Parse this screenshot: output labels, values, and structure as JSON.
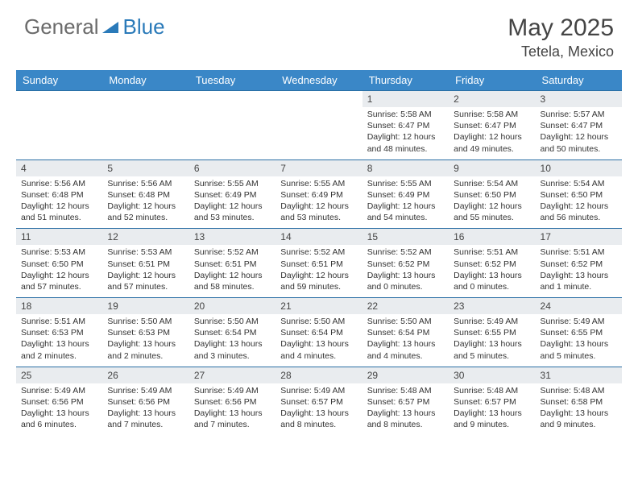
{
  "logo": {
    "text_a": "General",
    "text_b": "Blue"
  },
  "header": {
    "month": "May 2025",
    "location": "Tetela, Mexico"
  },
  "colors": {
    "header_bg": "#3a87c7",
    "daynum_bg": "#e9ecef",
    "border": "#2a6fa5",
    "logo_gray": "#6b6b6b",
    "logo_blue": "#2a7ab9"
  },
  "days_of_week": [
    "Sunday",
    "Monday",
    "Tuesday",
    "Wednesday",
    "Thursday",
    "Friday",
    "Saturday"
  ],
  "weeks": [
    {
      "nums": [
        "",
        "",
        "",
        "",
        "1",
        "2",
        "3"
      ],
      "cells": [
        null,
        null,
        null,
        null,
        {
          "l1": "Sunrise: 5:58 AM",
          "l2": "Sunset: 6:47 PM",
          "l3": "Daylight: 12 hours",
          "l4": "and 48 minutes."
        },
        {
          "l1": "Sunrise: 5:58 AM",
          "l2": "Sunset: 6:47 PM",
          "l3": "Daylight: 12 hours",
          "l4": "and 49 minutes."
        },
        {
          "l1": "Sunrise: 5:57 AM",
          "l2": "Sunset: 6:47 PM",
          "l3": "Daylight: 12 hours",
          "l4": "and 50 minutes."
        }
      ]
    },
    {
      "nums": [
        "4",
        "5",
        "6",
        "7",
        "8",
        "9",
        "10"
      ],
      "cells": [
        {
          "l1": "Sunrise: 5:56 AM",
          "l2": "Sunset: 6:48 PM",
          "l3": "Daylight: 12 hours",
          "l4": "and 51 minutes."
        },
        {
          "l1": "Sunrise: 5:56 AM",
          "l2": "Sunset: 6:48 PM",
          "l3": "Daylight: 12 hours",
          "l4": "and 52 minutes."
        },
        {
          "l1": "Sunrise: 5:55 AM",
          "l2": "Sunset: 6:49 PM",
          "l3": "Daylight: 12 hours",
          "l4": "and 53 minutes."
        },
        {
          "l1": "Sunrise: 5:55 AM",
          "l2": "Sunset: 6:49 PM",
          "l3": "Daylight: 12 hours",
          "l4": "and 53 minutes."
        },
        {
          "l1": "Sunrise: 5:55 AM",
          "l2": "Sunset: 6:49 PM",
          "l3": "Daylight: 12 hours",
          "l4": "and 54 minutes."
        },
        {
          "l1": "Sunrise: 5:54 AM",
          "l2": "Sunset: 6:50 PM",
          "l3": "Daylight: 12 hours",
          "l4": "and 55 minutes."
        },
        {
          "l1": "Sunrise: 5:54 AM",
          "l2": "Sunset: 6:50 PM",
          "l3": "Daylight: 12 hours",
          "l4": "and 56 minutes."
        }
      ]
    },
    {
      "nums": [
        "11",
        "12",
        "13",
        "14",
        "15",
        "16",
        "17"
      ],
      "cells": [
        {
          "l1": "Sunrise: 5:53 AM",
          "l2": "Sunset: 6:50 PM",
          "l3": "Daylight: 12 hours",
          "l4": "and 57 minutes."
        },
        {
          "l1": "Sunrise: 5:53 AM",
          "l2": "Sunset: 6:51 PM",
          "l3": "Daylight: 12 hours",
          "l4": "and 57 minutes."
        },
        {
          "l1": "Sunrise: 5:52 AM",
          "l2": "Sunset: 6:51 PM",
          "l3": "Daylight: 12 hours",
          "l4": "and 58 minutes."
        },
        {
          "l1": "Sunrise: 5:52 AM",
          "l2": "Sunset: 6:51 PM",
          "l3": "Daylight: 12 hours",
          "l4": "and 59 minutes."
        },
        {
          "l1": "Sunrise: 5:52 AM",
          "l2": "Sunset: 6:52 PM",
          "l3": "Daylight: 13 hours",
          "l4": "and 0 minutes."
        },
        {
          "l1": "Sunrise: 5:51 AM",
          "l2": "Sunset: 6:52 PM",
          "l3": "Daylight: 13 hours",
          "l4": "and 0 minutes."
        },
        {
          "l1": "Sunrise: 5:51 AM",
          "l2": "Sunset: 6:52 PM",
          "l3": "Daylight: 13 hours",
          "l4": "and 1 minute."
        }
      ]
    },
    {
      "nums": [
        "18",
        "19",
        "20",
        "21",
        "22",
        "23",
        "24"
      ],
      "cells": [
        {
          "l1": "Sunrise: 5:51 AM",
          "l2": "Sunset: 6:53 PM",
          "l3": "Daylight: 13 hours",
          "l4": "and 2 minutes."
        },
        {
          "l1": "Sunrise: 5:50 AM",
          "l2": "Sunset: 6:53 PM",
          "l3": "Daylight: 13 hours",
          "l4": "and 2 minutes."
        },
        {
          "l1": "Sunrise: 5:50 AM",
          "l2": "Sunset: 6:54 PM",
          "l3": "Daylight: 13 hours",
          "l4": "and 3 minutes."
        },
        {
          "l1": "Sunrise: 5:50 AM",
          "l2": "Sunset: 6:54 PM",
          "l3": "Daylight: 13 hours",
          "l4": "and 4 minutes."
        },
        {
          "l1": "Sunrise: 5:50 AM",
          "l2": "Sunset: 6:54 PM",
          "l3": "Daylight: 13 hours",
          "l4": "and 4 minutes."
        },
        {
          "l1": "Sunrise: 5:49 AM",
          "l2": "Sunset: 6:55 PM",
          "l3": "Daylight: 13 hours",
          "l4": "and 5 minutes."
        },
        {
          "l1": "Sunrise: 5:49 AM",
          "l2": "Sunset: 6:55 PM",
          "l3": "Daylight: 13 hours",
          "l4": "and 5 minutes."
        }
      ]
    },
    {
      "nums": [
        "25",
        "26",
        "27",
        "28",
        "29",
        "30",
        "31"
      ],
      "cells": [
        {
          "l1": "Sunrise: 5:49 AM",
          "l2": "Sunset: 6:56 PM",
          "l3": "Daylight: 13 hours",
          "l4": "and 6 minutes."
        },
        {
          "l1": "Sunrise: 5:49 AM",
          "l2": "Sunset: 6:56 PM",
          "l3": "Daylight: 13 hours",
          "l4": "and 7 minutes."
        },
        {
          "l1": "Sunrise: 5:49 AM",
          "l2": "Sunset: 6:56 PM",
          "l3": "Daylight: 13 hours",
          "l4": "and 7 minutes."
        },
        {
          "l1": "Sunrise: 5:49 AM",
          "l2": "Sunset: 6:57 PM",
          "l3": "Daylight: 13 hours",
          "l4": "and 8 minutes."
        },
        {
          "l1": "Sunrise: 5:48 AM",
          "l2": "Sunset: 6:57 PM",
          "l3": "Daylight: 13 hours",
          "l4": "and 8 minutes."
        },
        {
          "l1": "Sunrise: 5:48 AM",
          "l2": "Sunset: 6:57 PM",
          "l3": "Daylight: 13 hours",
          "l4": "and 9 minutes."
        },
        {
          "l1": "Sunrise: 5:48 AM",
          "l2": "Sunset: 6:58 PM",
          "l3": "Daylight: 13 hours",
          "l4": "and 9 minutes."
        }
      ]
    }
  ]
}
